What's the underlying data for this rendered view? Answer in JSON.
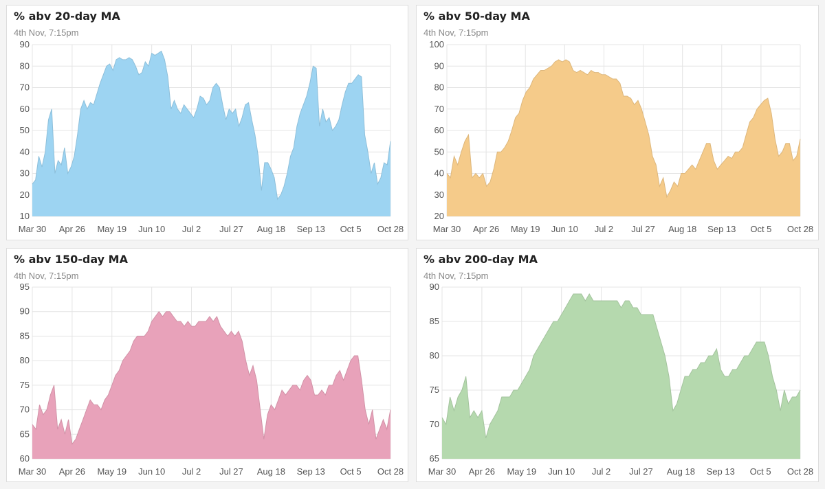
{
  "header": "",
  "chart_data": [
    {
      "type": "area",
      "title": "% abv 20-day MA",
      "subtitle": "4th Nov, 7:15pm",
      "color": "#9dd4f2",
      "xlabels": [
        "Mar 30",
        "Apr 26",
        "May 19",
        "Jun 10",
        "Jul 2",
        "Jul 27",
        "Aug 18",
        "Sep 13",
        "Oct 5",
        "Oct 28"
      ],
      "yticks": [
        10,
        20,
        30,
        40,
        50,
        60,
        70,
        80,
        90
      ],
      "ylim": [
        10,
        90
      ],
      "grid": true,
      "values": [
        25,
        27,
        38,
        33,
        40,
        55,
        60,
        30,
        36,
        34,
        42,
        30,
        33,
        38,
        48,
        60,
        64,
        60,
        63,
        62,
        67,
        72,
        76,
        80,
        81,
        78,
        83,
        84,
        83,
        83,
        84,
        83,
        80,
        76,
        77,
        82,
        80,
        86,
        85,
        86,
        87,
        83,
        75,
        60,
        64,
        60,
        58,
        62,
        60,
        58,
        56,
        60,
        66,
        65,
        62,
        64,
        70,
        72,
        70,
        62,
        55,
        60,
        58,
        60,
        52,
        56,
        62,
        63,
        55,
        48,
        38,
        22,
        35,
        35,
        32,
        28,
        18,
        20,
        24,
        30,
        38,
        42,
        52,
        58,
        62,
        66,
        72,
        80,
        79,
        52,
        60,
        54,
        56,
        50,
        52,
        55,
        62,
        68,
        72,
        72,
        74,
        76,
        75,
        48,
        40,
        30,
        35,
        25,
        28,
        35,
        34,
        45
      ]
    },
    {
      "type": "area",
      "title": "% abv 50-day MA",
      "subtitle": "4th Nov, 7:15pm",
      "color": "#f5cb8a",
      "xlabels": [
        "Mar 30",
        "Apr 26",
        "May 19",
        "Jun 10",
        "Jul 2",
        "Jul 27",
        "Aug 18",
        "Sep 13",
        "Oct 5",
        "Oct 28"
      ],
      "yticks": [
        20,
        30,
        40,
        50,
        60,
        70,
        80,
        90,
        100
      ],
      "ylim": [
        20,
        100
      ],
      "grid": true,
      "values": [
        40,
        38,
        48,
        44,
        50,
        55,
        58,
        38,
        40,
        38,
        40,
        34,
        36,
        42,
        50,
        50,
        52,
        55,
        60,
        66,
        68,
        74,
        78,
        80,
        84,
        86,
        88,
        88,
        89,
        90,
        92,
        93,
        92,
        93,
        92,
        88,
        87,
        88,
        87,
        86,
        88,
        87,
        87,
        86,
        86,
        85,
        84,
        84,
        82,
        76,
        76,
        75,
        72,
        74,
        70,
        64,
        58,
        48,
        44,
        34,
        38,
        29,
        32,
        36,
        34,
        40,
        40,
        42,
        44,
        42,
        46,
        50,
        54,
        54,
        46,
        42,
        44,
        46,
        48,
        47,
        50,
        50,
        52,
        58,
        64,
        66,
        70,
        72,
        74,
        75,
        68,
        56,
        48,
        50,
        54,
        54,
        46,
        48,
        56
      ]
    },
    {
      "type": "area",
      "title": "% abv 150-day MA",
      "subtitle": "4th Nov, 7:15pm",
      "color": "#e8a2ba",
      "xlabels": [
        "Mar 30",
        "Apr 26",
        "May 19",
        "Jun 10",
        "Jul 2",
        "Jul 27",
        "Aug 18",
        "Sep 13",
        "Oct 5",
        "Oct 28"
      ],
      "yticks": [
        60,
        65,
        70,
        75,
        80,
        85,
        90,
        95
      ],
      "ylim": [
        60,
        95
      ],
      "grid": true,
      "values": [
        67,
        66,
        71,
        69,
        70,
        73,
        75,
        66,
        68,
        65,
        68,
        63,
        64,
        66,
        68,
        70,
        72,
        71,
        71,
        70,
        72,
        73,
        75,
        77,
        78,
        80,
        81,
        82,
        84,
        85,
        85,
        85,
        86,
        88,
        89,
        90,
        89,
        90,
        90,
        89,
        88,
        88,
        87,
        88,
        87,
        87,
        88,
        88,
        88,
        89,
        88,
        89,
        87,
        86,
        85,
        86,
        85,
        86,
        84,
        80,
        77,
        79,
        76,
        70,
        64,
        69,
        71,
        70,
        72,
        74,
        73,
        74,
        75,
        75,
        74,
        76,
        77,
        76,
        73,
        73,
        74,
        73,
        75,
        75,
        77,
        78,
        76,
        78,
        80,
        81,
        81,
        76,
        70,
        67,
        70,
        64,
        66,
        68,
        66,
        70
      ]
    },
    {
      "type": "area",
      "title": "% abv 200-day MA",
      "subtitle": "4th Nov, 7:15pm",
      "color": "#b5d9ae",
      "xlabels": [
        "Mar 30",
        "Apr 26",
        "May 19",
        "Jun 10",
        "Jul 2",
        "Jul 27",
        "Aug 18",
        "Sep 13",
        "Oct 5",
        "Oct 28"
      ],
      "yticks": [
        65,
        70,
        75,
        80,
        85,
        90
      ],
      "ylim": [
        65,
        90
      ],
      "grid": true,
      "values": [
        71,
        70,
        74,
        72,
        74,
        75,
        77,
        71,
        72,
        71,
        72,
        68,
        70,
        71,
        72,
        74,
        74,
        74,
        75,
        75,
        76,
        77,
        78,
        80,
        81,
        82,
        83,
        84,
        85,
        85,
        86,
        87,
        88,
        89,
        89,
        89,
        88,
        89,
        88,
        88,
        88,
        88,
        88,
        88,
        88,
        87,
        88,
        88,
        87,
        87,
        86,
        86,
        86,
        86,
        84,
        82,
        80,
        77,
        72,
        73,
        75,
        77,
        77,
        78,
        78,
        79,
        79,
        80,
        80,
        81,
        78,
        77,
        77,
        78,
        78,
        79,
        80,
        80,
        81,
        82,
        82,
        82,
        80,
        77,
        75,
        72,
        75,
        73,
        74,
        74,
        75
      ]
    }
  ]
}
